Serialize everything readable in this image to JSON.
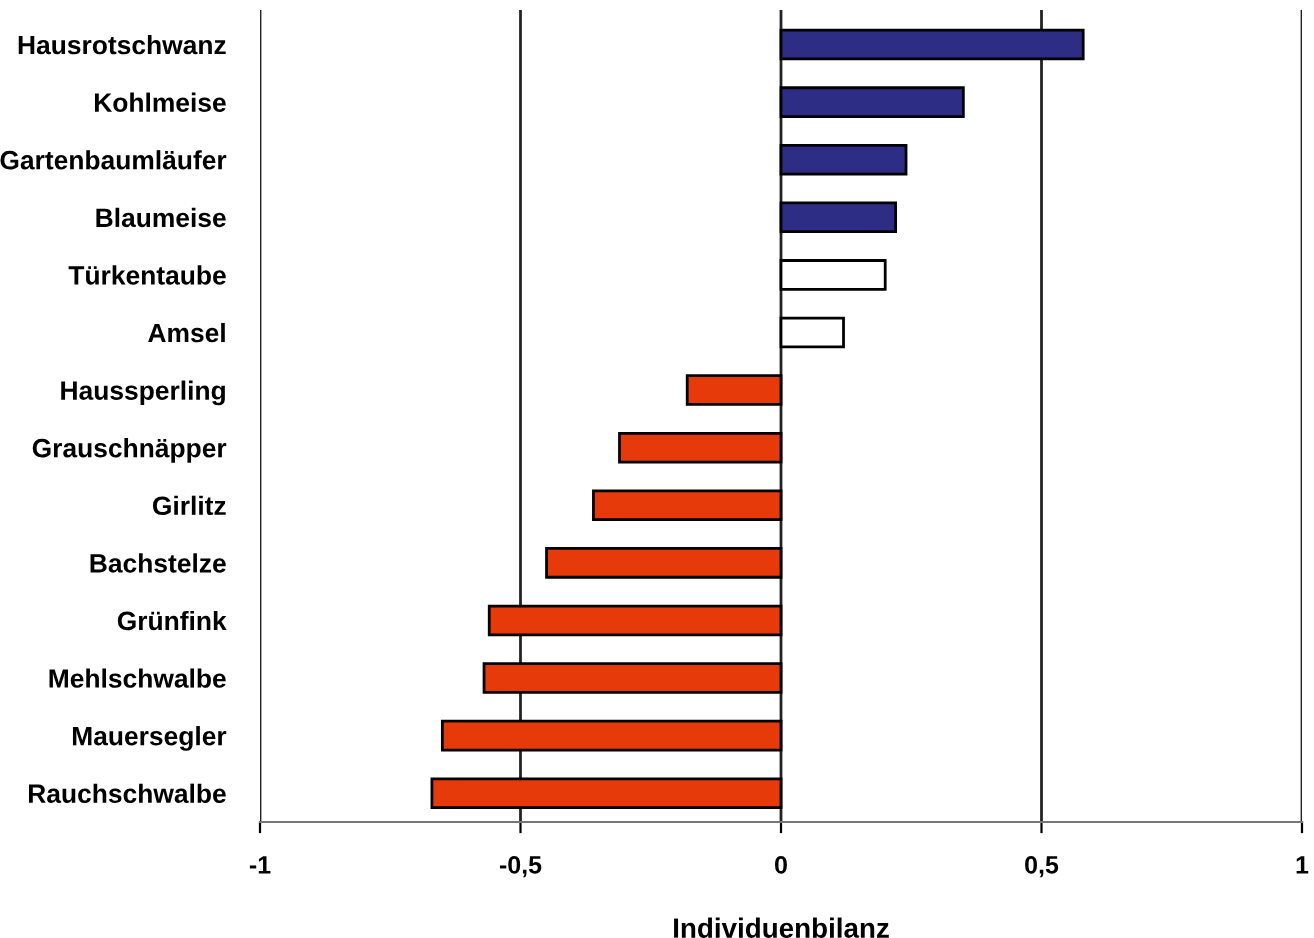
{
  "chart_data": {
    "type": "bar",
    "orientation": "horizontal",
    "xlabel": "Individuenbilanz",
    "categories": [
      "Hausrotschwanz",
      "Kohlmeise",
      "Gartenbaumläufer",
      "Blaumeise",
      "Türkentaube",
      "Amsel",
      "Haussperling",
      "Grauschnäpper",
      "Girlitz",
      "Bachstelze",
      "Grünfink",
      "Mehlschwalbe",
      "Mauersegler",
      "Rauchschwalbe"
    ],
    "values": [
      0.58,
      0.35,
      0.24,
      0.22,
      0.2,
      0.12,
      -0.18,
      -0.31,
      -0.36,
      -0.45,
      -0.56,
      -0.57,
      -0.65,
      -0.67
    ],
    "colors": [
      "#2e2d86",
      "#2e2d86",
      "#2e2d86",
      "#2e2d86",
      "#ffffff",
      "#ffffff",
      "#e63a0a",
      "#e63a0a",
      "#e63a0a",
      "#e63a0a",
      "#e63a0a",
      "#e63a0a",
      "#e63a0a",
      "#e63a0a"
    ],
    "xlim": [
      -1,
      1
    ],
    "xticks": [
      -1,
      {
        "value": -0.5,
        "label": "-0,5"
      },
      0,
      {
        "value": 0.5,
        "label": "0,5"
      },
      1
    ],
    "grid": "x",
    "legend": false
  }
}
